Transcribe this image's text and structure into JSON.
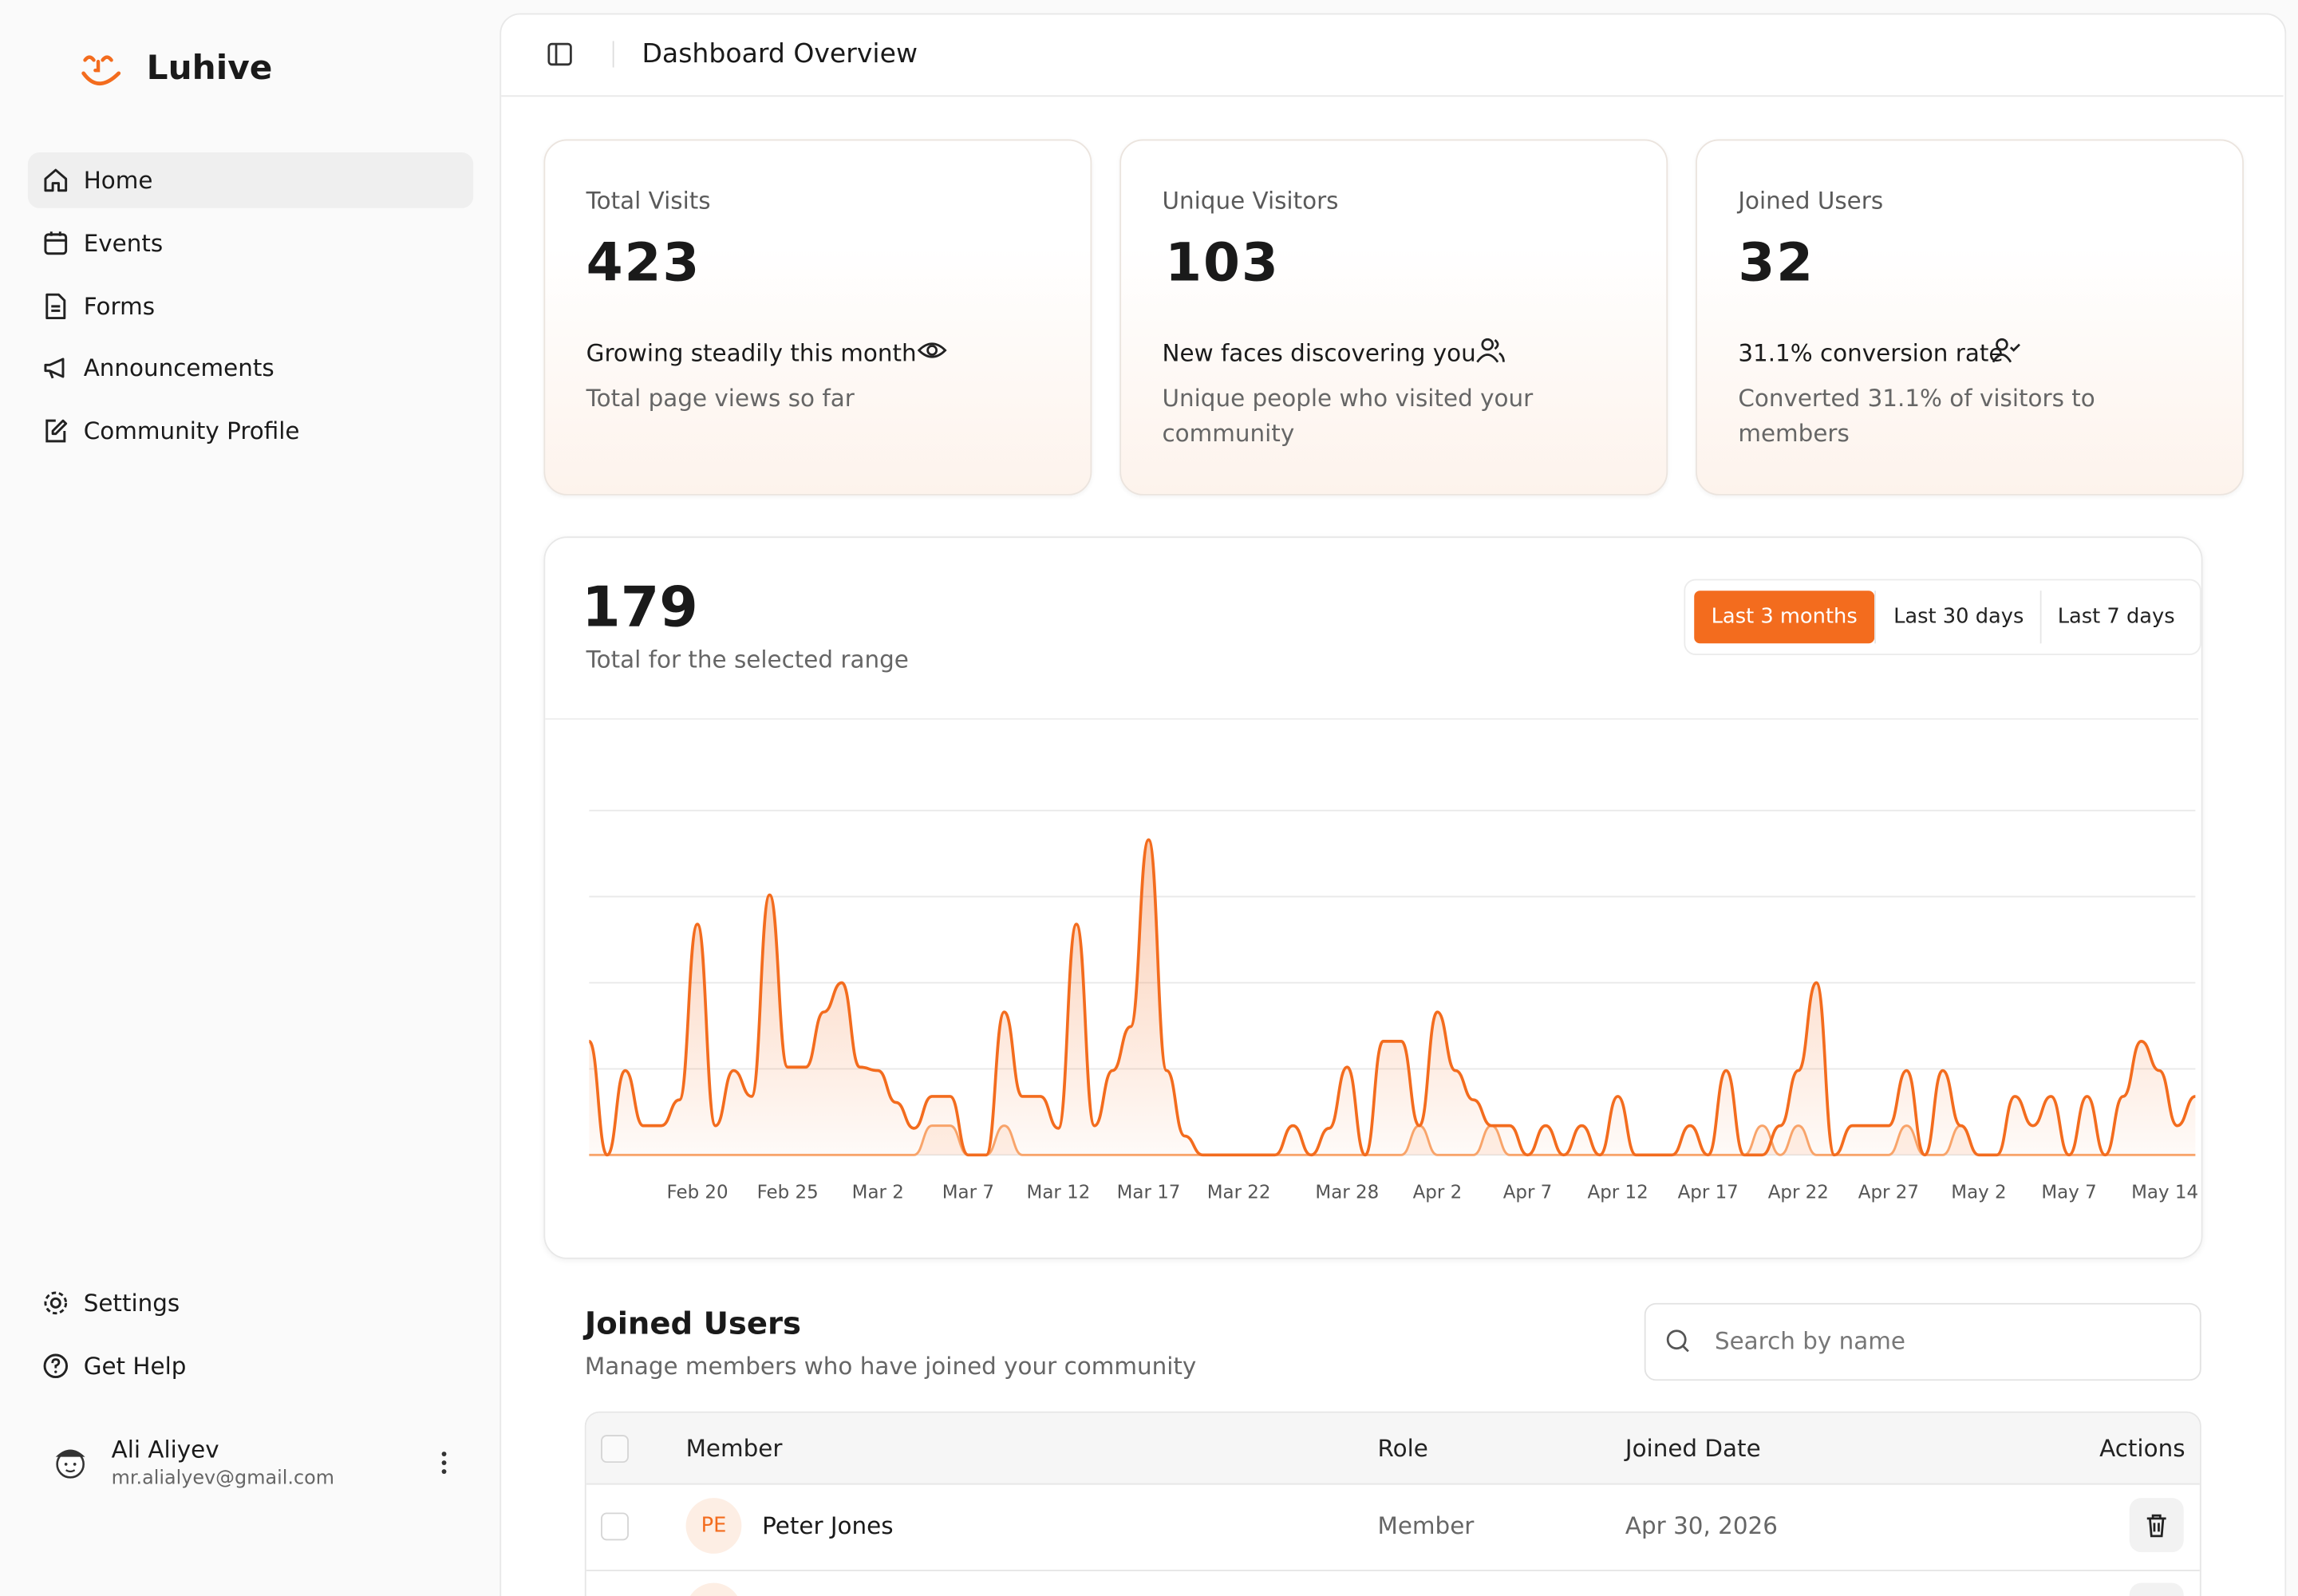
{
  "sidebar": {
    "brand": "Luhive",
    "nav": [
      "Home",
      "Events",
      "Forms",
      "Announcements",
      "Community Profile"
    ],
    "footer_nav": [
      "Settings",
      "Get Help"
    ],
    "user": {
      "name": "Ali Aliyev",
      "email": "mr.alialyev@gmail.com"
    }
  },
  "header": {
    "title": "Dashboard Overview"
  },
  "stats": [
    {
      "label": "Total Visits",
      "value": 423,
      "headline": "Growing steadily this month",
      "description": "Total page views so far"
    },
    {
      "label": "Unique Visitors",
      "value": 103,
      "headline": "New faces discovering you",
      "description": "Unique people who visited your community"
    },
    {
      "label": "Joined Users",
      "value": 32,
      "headline": "31.1% conversion rate",
      "description": "Converted 31.1% of visitors to members"
    }
  ],
  "range_card": {
    "total": 179,
    "total_label": "Total for the selected range",
    "ranges": [
      "Last 3 months",
      "Last 30 days",
      "Last 7 days"
    ],
    "active_range": 0
  },
  "chart_data": {
    "type": "area",
    "categories": [
      null,
      null,
      null,
      null,
      null,
      null,
      "Feb 20",
      null,
      null,
      null,
      null,
      "Feb 25",
      null,
      null,
      null,
      null,
      "Mar 2",
      null,
      null,
      null,
      null,
      "Mar 7",
      null,
      null,
      null,
      null,
      "Mar 12",
      null,
      null,
      null,
      null,
      "Mar 17",
      null,
      null,
      null,
      null,
      "Mar 22",
      null,
      null,
      null,
      null,
      null,
      "Mar 28",
      null,
      null,
      null,
      null,
      "Apr 2",
      null,
      null,
      null,
      null,
      "Apr 7",
      null,
      null,
      null,
      null,
      "Apr 12",
      null,
      null,
      null,
      null,
      "Apr 17",
      null,
      null,
      null,
      null,
      "Apr 22",
      null,
      null,
      null,
      null,
      "Apr 27",
      null,
      null,
      null,
      null,
      "May 2",
      null,
      null,
      null,
      null,
      "May 7",
      null,
      null,
      null,
      null,
      null,
      null,
      "May 14"
    ],
    "series": [
      {
        "color": "#f36c1e",
        "values": [
          132,
          0,
          98,
          34,
          34,
          64,
          268,
          34,
          98,
          68,
          302,
          102,
          102,
          166,
          200,
          102,
          98,
          61,
          31,
          68,
          68,
          0,
          0,
          166,
          68,
          68,
          31,
          268,
          34,
          98,
          149,
          366,
          98,
          22,
          0,
          0,
          0,
          0,
          0,
          34,
          0,
          31,
          102,
          0,
          132,
          132,
          34,
          166,
          98,
          64,
          34,
          34,
          0,
          34,
          0,
          34,
          0,
          68,
          0,
          0,
          0,
          34,
          0,
          98,
          0,
          0,
          34,
          98,
          200,
          0,
          34,
          34,
          34,
          98,
          0,
          98,
          34,
          0,
          0,
          68,
          34,
          68,
          0,
          68,
          0,
          68,
          132,
          98,
          34,
          68
        ]
      },
      {
        "color": "#f8a46a",
        "values": [
          0,
          0,
          0,
          0,
          0,
          0,
          0,
          0,
          0,
          0,
          0,
          0,
          0,
          0,
          0,
          0,
          0,
          0,
          0,
          34,
          34,
          0,
          0,
          34,
          0,
          0,
          0,
          0,
          0,
          0,
          0,
          0,
          0,
          0,
          0,
          0,
          0,
          0,
          0,
          0,
          0,
          0,
          0,
          0,
          0,
          0,
          34,
          0,
          0,
          0,
          34,
          0,
          0,
          0,
          0,
          0,
          0,
          0,
          0,
          0,
          0,
          0,
          0,
          0,
          0,
          34,
          0,
          34,
          0,
          0,
          0,
          0,
          0,
          34,
          0,
          0,
          34,
          0,
          0,
          0,
          0,
          0,
          0,
          0,
          0,
          0,
          0,
          0,
          0,
          0
        ]
      }
    ],
    "ylim": [
      0,
      400
    ],
    "grid_lines": [
      0,
      100,
      200,
      300,
      400
    ],
    "grid": true
  },
  "joined_users": {
    "title": "Joined Users",
    "subtitle": "Manage members who have joined your community",
    "search_placeholder": "Search by name",
    "table": {
      "columns": [
        "Member",
        "Role",
        "Joined Date",
        "Actions"
      ],
      "rows": [
        {
          "initials": "PE",
          "name": "Peter Jones",
          "role": "Member",
          "joined": "Apr 30, 2026"
        }
      ]
    }
  }
}
